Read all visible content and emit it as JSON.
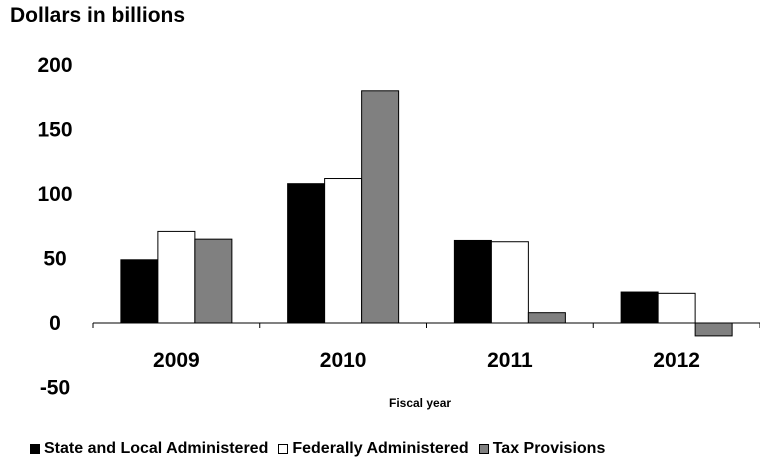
{
  "chart_data": {
    "type": "bar",
    "ylabel": "Dollars in billions",
    "xlabel": "Fiscal year",
    "categories": [
      "2009",
      "2010",
      "2011",
      "2012"
    ],
    "series": [
      {
        "name": "State and Local Administered",
        "color": "#000000",
        "values": [
          49,
          108,
          64,
          24
        ]
      },
      {
        "name": "Federally Administered",
        "color": "#ffffff",
        "values": [
          71,
          112,
          63,
          23
        ]
      },
      {
        "name": "Tax Provisions",
        "color": "#808080",
        "values": [
          65,
          180,
          8,
          -10
        ]
      }
    ],
    "ylim": [
      -50,
      200
    ],
    "yticks": [
      200,
      150,
      100,
      50,
      0,
      -50
    ],
    "grid": false,
    "legend_position": "bottom"
  }
}
